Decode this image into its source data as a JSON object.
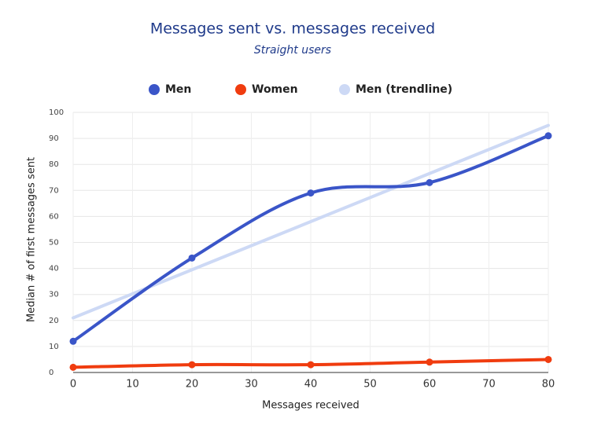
{
  "chart_data": {
    "type": "line",
    "title": "Messages sent vs. messages received",
    "subtitle": "Straight users",
    "x_label": "Messages received",
    "y_label": "Median # of first messages sent",
    "series": [
      {
        "name": "Men",
        "color": "#3a55c8",
        "x": [
          0,
          20,
          40,
          60,
          80
        ],
        "values": [
          12,
          44,
          69,
          73,
          91
        ],
        "markers": true
      },
      {
        "name": "Women",
        "color": "#f03c0f",
        "x": [
          0,
          20,
          40,
          60,
          80
        ],
        "values": [
          2,
          3,
          3,
          4,
          5
        ],
        "markers": true
      },
      {
        "name": "Men (trendline)",
        "color": "#cdd9f5",
        "x": [
          0,
          80
        ],
        "values": [
          21,
          95
        ],
        "markers": false
      }
    ],
    "xlim": [
      0,
      80
    ],
    "xticks": [
      0,
      10,
      20,
      30,
      40,
      50,
      60,
      70,
      80
    ],
    "ylim": [
      0,
      100
    ],
    "yticks": [
      0,
      10,
      20,
      30,
      40,
      50,
      60,
      70,
      80,
      90,
      100
    ],
    "grid": true,
    "legend": "top"
  }
}
